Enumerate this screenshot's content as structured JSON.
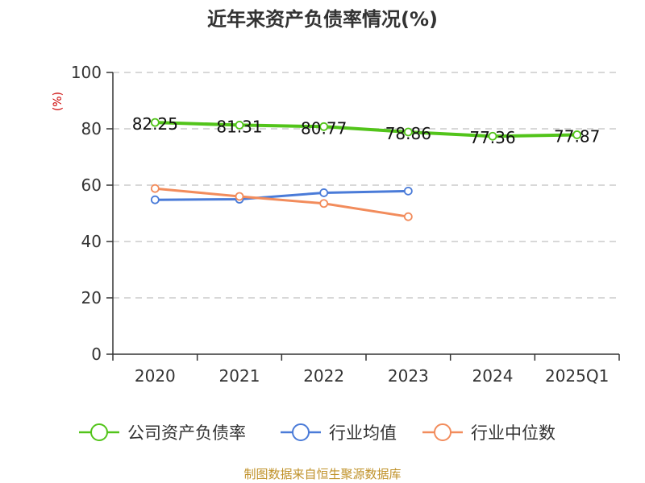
{
  "chart_data": {
    "type": "line",
    "title": "近年来资产负债率情况(%)",
    "unit_label": "(%)",
    "categories": [
      "2020",
      "2021",
      "2022",
      "2023",
      "2024",
      "2025Q1"
    ],
    "y_ticks": [
      "0",
      "20",
      "40",
      "60",
      "80",
      "100"
    ],
    "ylim": [
      0,
      100
    ],
    "grid": true,
    "legend_position": "bottom",
    "series": [
      {
        "name": "公司资产负债率",
        "color": "#52c41a",
        "values": [
          82.25,
          81.31,
          80.77,
          78.86,
          77.36,
          77.87
        ],
        "labels": [
          "82.25",
          "81.31",
          "80.77",
          "78.86",
          "77.36",
          "77.87"
        ]
      },
      {
        "name": "行业均值",
        "color": "#4a7bd8",
        "values": [
          54.8,
          55.0,
          57.3,
          57.9,
          null,
          null
        ]
      },
      {
        "name": "行业中位数",
        "color": "#f28c5c",
        "values": [
          58.8,
          56.0,
          53.5,
          48.8,
          null,
          null
        ]
      }
    ],
    "source": "制图数据来自恒生聚源数据库"
  }
}
